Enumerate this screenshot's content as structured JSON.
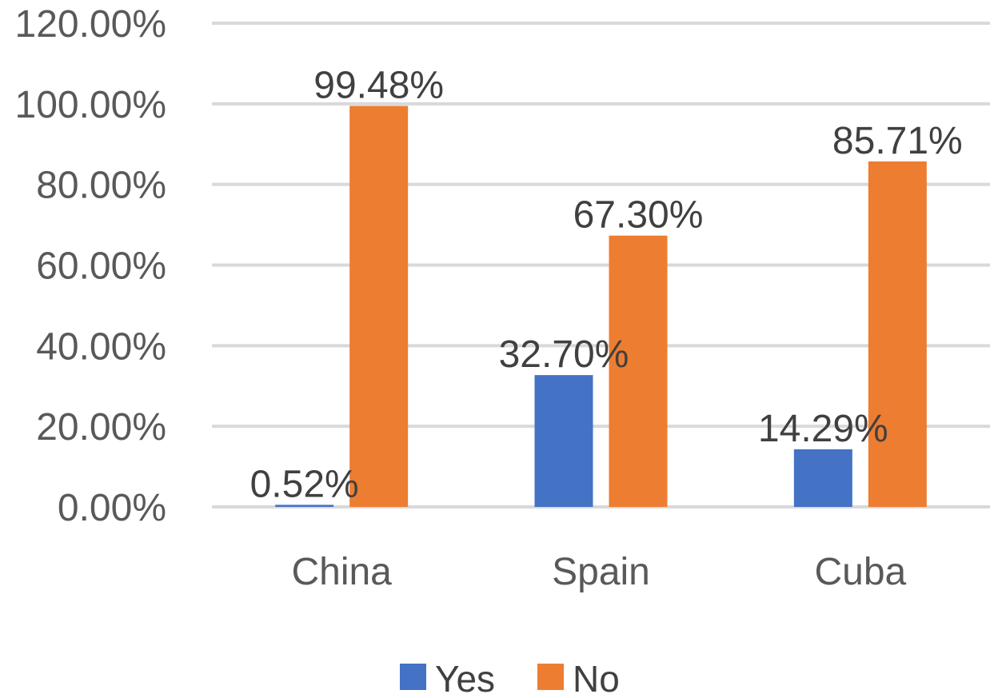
{
  "chart_data": {
    "type": "bar",
    "title": "",
    "xlabel": "",
    "ylabel": "",
    "categories": [
      "China",
      "Spain",
      "Cuba"
    ],
    "series": [
      {
        "name": "Yes",
        "color": "#4472c4",
        "values": [
          0.52,
          32.7,
          14.29
        ],
        "labels": [
          "0.52%",
          "32.70%",
          "14.29%"
        ]
      },
      {
        "name": "No",
        "color": "#ed7d31",
        "values": [
          99.48,
          67.3,
          85.71
        ],
        "labels": [
          "99.48%",
          "67.30%",
          "85.71%"
        ]
      }
    ],
    "ylim": [
      0,
      120
    ],
    "yticks": [
      0,
      20,
      40,
      60,
      80,
      100,
      120
    ],
    "ytick_labels": [
      "0.00%",
      "20.00%",
      "40.00%",
      "60.00%",
      "80.00%",
      "100.00%",
      "120.00%"
    ],
    "grid": true,
    "legend_position": "bottom"
  }
}
